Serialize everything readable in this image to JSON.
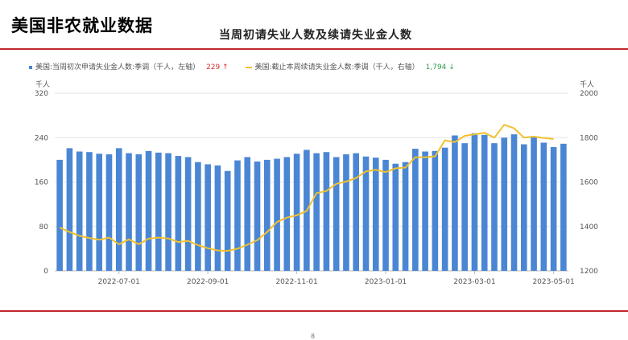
{
  "header": {
    "page_title": "美国非农就业数据",
    "chart_title": "当周初请失业人数及续请失业金人数"
  },
  "legend": {
    "series1_label": "美国:当周初次申请失业金人数:季调（千人，左轴）",
    "series1_value": "229 ↑",
    "series2_label": "美国:截止本周续请失业金人数:季调（千人，右轴）",
    "series2_value": "1,794 ↓"
  },
  "axes": {
    "left_unit": "千人",
    "right_unit": "千人"
  },
  "footer": {
    "mark": "8"
  },
  "colors": {
    "bar": "#4a86d4",
    "line": "#f2c12e",
    "rule": "#c0272d",
    "up": "#d0312d",
    "down": "#2e9a4b"
  },
  "chart_data": {
    "type": "bar",
    "x_tick_labels": [
      "2022-07-01",
      "2022-09-01",
      "2022-11-01",
      "2023-01-01",
      "2023-03-01",
      "2023-05-01"
    ],
    "ylim_left": [
      0,
      320
    ],
    "yticks_left": [
      0,
      80,
      160,
      240,
      320
    ],
    "ylim_right": [
      1200,
      2000
    ],
    "yticks_right": [
      1200,
      1400,
      1600,
      1800,
      2000
    ],
    "grid": "horizontal",
    "series": [
      {
        "name": "美国:当周初次申请失业金人数:季调（千人，左轴）",
        "axis": "left",
        "type": "bar",
        "values": [
          200,
          221,
          215,
          214,
          211,
          210,
          221,
          212,
          210,
          216,
          213,
          212,
          207,
          205,
          196,
          192,
          190,
          180,
          199,
          205,
          197,
          200,
          202,
          205,
          211,
          218,
          212,
          214,
          205,
          210,
          212,
          206,
          204,
          200,
          193,
          196,
          220,
          215,
          216,
          222,
          244,
          230,
          248,
          245,
          230,
          240,
          246,
          228,
          242,
          231,
          223,
          229
        ]
      },
      {
        "name": "美国:截止本周续请失业金人数:季调（千人，右轴）",
        "axis": "right",
        "type": "line",
        "values": [
          1395,
          1375,
          1358,
          1348,
          1340,
          1350,
          1320,
          1342,
          1320,
          1345,
          1350,
          1346,
          1330,
          1335,
          1316,
          1302,
          1292,
          1290,
          1300,
          1318,
          1338,
          1375,
          1420,
          1440,
          1450,
          1470,
          1550,
          1560,
          1592,
          1602,
          1618,
          1648,
          1655,
          1645,
          1662,
          1665,
          1712,
          1712,
          1716,
          1788,
          1780,
          1808,
          1815,
          1822,
          1800,
          1858,
          1842,
          1800,
          1805,
          1798,
          1794
        ]
      }
    ]
  }
}
